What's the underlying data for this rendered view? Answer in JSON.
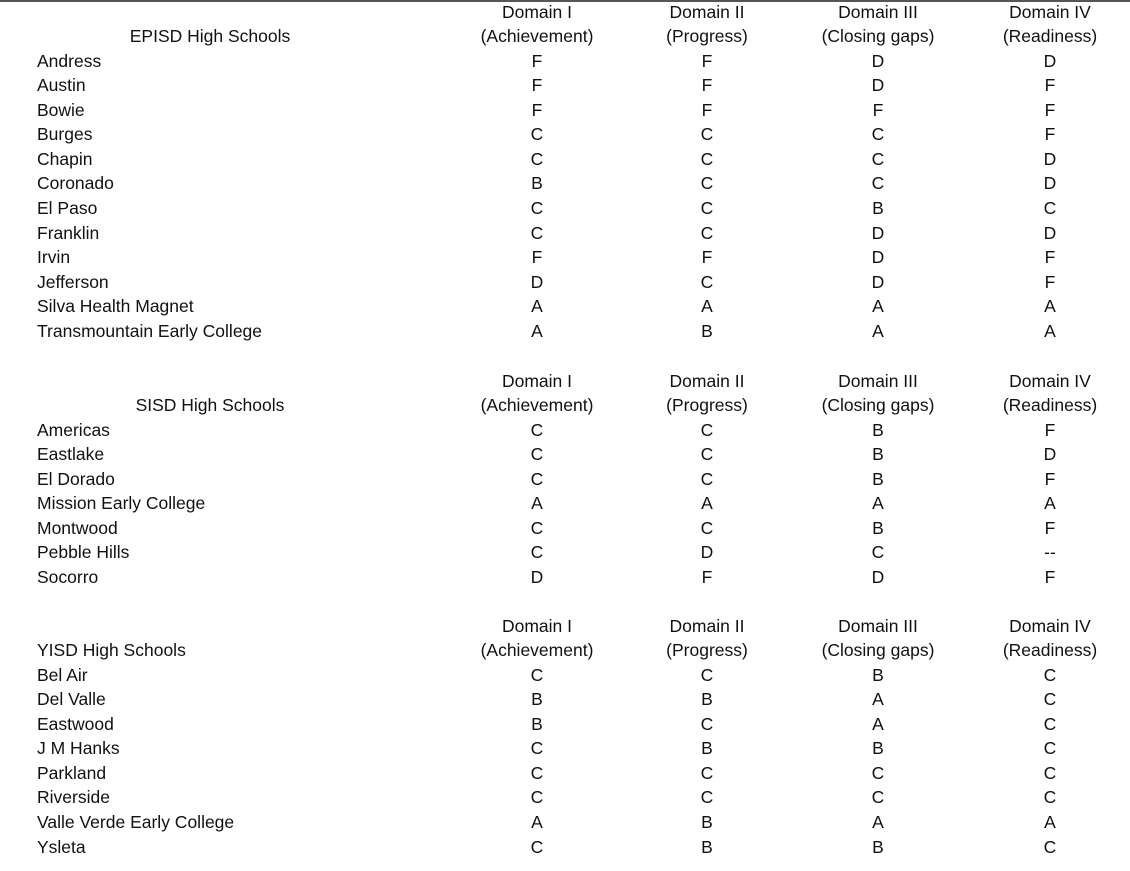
{
  "columns": [
    {
      "line1": "Domain I",
      "line2": "(Achievement)"
    },
    {
      "line1": "Domain II",
      "line2": "(Progress)"
    },
    {
      "line1": "Domain III",
      "line2": "(Closing gaps)"
    },
    {
      "line1": "Domain IV",
      "line2": "(Readiness)"
    }
  ],
  "sections": [
    {
      "title": "EPISD High Schools",
      "rows": [
        {
          "name": "Andress",
          "grades": [
            "F",
            "F",
            "D",
            "D"
          ]
        },
        {
          "name": "Austin",
          "grades": [
            "F",
            "F",
            "D",
            "F"
          ]
        },
        {
          "name": "Bowie",
          "grades": [
            "F",
            "F",
            "F",
            "F"
          ]
        },
        {
          "name": "Burges",
          "grades": [
            "C",
            "C",
            "C",
            "F"
          ]
        },
        {
          "name": "Chapin",
          "grades": [
            "C",
            "C",
            "C",
            "D"
          ]
        },
        {
          "name": "Coronado",
          "grades": [
            "B",
            "C",
            "C",
            "D"
          ]
        },
        {
          "name": "El Paso",
          "grades": [
            "C",
            "C",
            "B",
            "C"
          ]
        },
        {
          "name": "Franklin",
          "grades": [
            "C",
            "C",
            "D",
            "D"
          ]
        },
        {
          "name": "Irvin",
          "grades": [
            "F",
            "F",
            "D",
            "F"
          ]
        },
        {
          "name": "Jefferson",
          "grades": [
            "D",
            "C",
            "D",
            "F"
          ]
        },
        {
          "name": "Silva Health Magnet",
          "grades": [
            "A",
            "A",
            "A",
            "A"
          ]
        },
        {
          "name": "Transmountain Early College",
          "grades": [
            "A",
            "B",
            "A",
            "A"
          ]
        }
      ]
    },
    {
      "title": "SISD High Schools",
      "rows": [
        {
          "name": "Americas",
          "grades": [
            "C",
            "C",
            "B",
            "F"
          ]
        },
        {
          "name": "Eastlake",
          "grades": [
            "C",
            "C",
            "B",
            "D"
          ]
        },
        {
          "name": "El Dorado",
          "grades": [
            "C",
            "C",
            "B",
            "F"
          ]
        },
        {
          "name": "Mission Early College",
          "grades": [
            "A",
            "A",
            "A",
            "A"
          ]
        },
        {
          "name": "Montwood",
          "grades": [
            "C",
            "C",
            "B",
            "F"
          ]
        },
        {
          "name": "Pebble Hills",
          "grades": [
            "C",
            "D",
            "C",
            "--"
          ]
        },
        {
          "name": "Socorro",
          "grades": [
            "D",
            "F",
            "D",
            "F"
          ]
        }
      ]
    },
    {
      "title": "YISD High Schools",
      "rows": [
        {
          "name": "Bel Air",
          "grades": [
            "C",
            "C",
            "B",
            "C"
          ]
        },
        {
          "name": "Del Valle",
          "grades": [
            "B",
            "B",
            "A",
            "C"
          ]
        },
        {
          "name": "Eastwood",
          "grades": [
            "B",
            "C",
            "A",
            "C"
          ]
        },
        {
          "name": "J M Hanks",
          "grades": [
            "C",
            "B",
            "B",
            "C"
          ]
        },
        {
          "name": "Parkland",
          "grades": [
            "C",
            "C",
            "C",
            "C"
          ]
        },
        {
          "name": "Riverside",
          "grades": [
            "C",
            "C",
            "C",
            "C"
          ]
        },
        {
          "name": "Valle Verde Early College",
          "grades": [
            "A",
            "B",
            "A",
            "A"
          ]
        },
        {
          "name": "Ysleta",
          "grades": [
            "C",
            "B",
            "B",
            "C"
          ]
        }
      ]
    }
  ]
}
